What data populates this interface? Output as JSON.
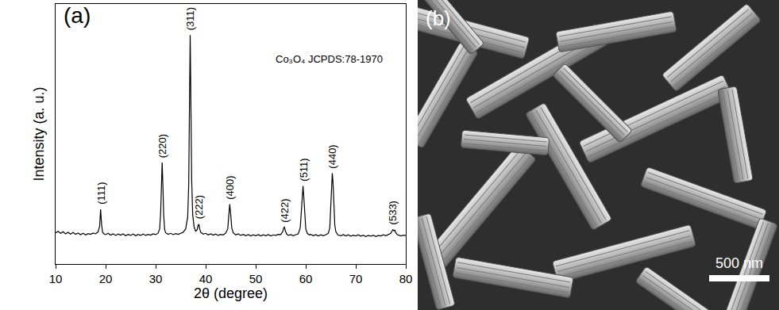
{
  "chart_data": {
    "type": "line",
    "panel_label": "(a)",
    "x_label": "2θ (degree)",
    "y_label": "Intensity (a. u.)",
    "note": "Co₃O₄ JCPDS:78-1970",
    "color": "#000000",
    "xlim": [
      10,
      80
    ],
    "xticks": [
      10,
      20,
      30,
      40,
      50,
      60,
      70,
      80
    ],
    "ylim": [
      0,
      100
    ],
    "tick_labels": "x",
    "grid": false,
    "x": [
      10,
      10.5,
      11,
      11.5,
      12,
      12.5,
      13,
      13.5,
      14,
      14.5,
      15,
      15.5,
      16,
      16.5,
      17,
      17.5,
      18,
      18.5,
      18.8,
      19.0,
      19.2,
      19.4,
      19.7,
      20,
      20.5,
      21,
      21.5,
      22,
      22.5,
      23,
      23.5,
      24,
      24.5,
      25,
      25.5,
      26,
      26.5,
      27,
      27.5,
      28,
      28.5,
      29,
      29.5,
      30,
      30.5,
      30.8,
      31.0,
      31.15,
      31.3,
      31.45,
      31.6,
      31.8,
      32.0,
      32.5,
      33,
      33.5,
      34,
      34.5,
      35,
      35.5,
      36.0,
      36.4,
      36.6,
      36.75,
      36.9,
      37.05,
      37.2,
      37.4,
      37.7,
      38.0,
      38.3,
      38.5,
      38.65,
      38.8,
      39.0,
      39.5,
      40,
      40.5,
      41,
      41.5,
      42,
      42.5,
      43,
      43.5,
      44.0,
      44.4,
      44.6,
      44.8,
      45.0,
      45.2,
      45.5,
      46,
      46.5,
      47,
      47.5,
      48,
      48.5,
      49,
      49.5,
      50,
      50.5,
      51,
      51.5,
      52,
      52.5,
      53,
      53.5,
      54,
      54.5,
      55.0,
      55.4,
      55.6,
      55.75,
      55.9,
      56.2,
      56.5,
      57,
      57.5,
      58,
      58.5,
      58.9,
      59.1,
      59.3,
      59.45,
      59.6,
      59.8,
      60.0,
      60.3,
      60.7,
      61,
      61.5,
      62,
      62.5,
      63,
      63.5,
      64,
      64.5,
      64.8,
      65.0,
      65.15,
      65.3,
      65.45,
      65.6,
      65.8,
      66.0,
      66.4,
      67,
      67.5,
      68,
      68.5,
      69,
      69.5,
      70,
      70.5,
      71,
      71.5,
      72,
      72.5,
      73,
      73.5,
      74,
      74.5,
      75,
      75.5,
      76,
      76.5,
      77.0,
      77.2,
      77.4,
      77.6,
      77.8,
      78.0,
      78.3,
      78.7,
      79,
      79.5,
      80
    ],
    "values": [
      12.0,
      12.6,
      11.8,
      12.4,
      11.6,
      12.2,
      11.5,
      12.1,
      11.4,
      11.9,
      11.3,
      11.8,
      11.2,
      11.7,
      11.4,
      11.9,
      11.6,
      12.4,
      14.5,
      21,
      15,
      12.2,
      11.6,
      11.3,
      11.8,
      11.1,
      11.6,
      11.0,
      11.5,
      11.1,
      11.6,
      10.9,
      11.4,
      11.0,
      11.5,
      10.9,
      11.4,
      11.0,
      11.5,
      11.0,
      11.4,
      11.1,
      11.6,
      11.3,
      11.9,
      13.5,
      20,
      30,
      39,
      30,
      19,
      13.2,
      12.0,
      11.4,
      11.8,
      11.3,
      11.7,
      11.4,
      11.9,
      12.2,
      13.5,
      18,
      30,
      55,
      88,
      60,
      32,
      19,
      14,
      12.6,
      13.2,
      15,
      15.3,
      13.5,
      12.2,
      11.5,
      11.8,
      11.2,
      11.6,
      11.1,
      11.5,
      11.0,
      11.4,
      11.2,
      11.9,
      13.5,
      18,
      23,
      19,
      14,
      12.0,
      11.2,
      11.6,
      11.0,
      11.4,
      10.9,
      11.3,
      10.8,
      11.2,
      10.9,
      11.3,
      10.8,
      11.2,
      10.9,
      11.3,
      10.8,
      11.2,
      11.0,
      11.4,
      11.3,
      12.5,
      14,
      14.2,
      12.8,
      11.5,
      11.0,
      11.3,
      10.9,
      11.3,
      11.6,
      14,
      20,
      28,
      30,
      26,
      18,
      13.5,
      11.8,
      11.2,
      11.4,
      10.9,
      11.3,
      10.8,
      11.2,
      10.9,
      11.3,
      11.8,
      14,
      21,
      30,
      35,
      31,
      22,
      15,
      12.5,
      11.2,
      10.9,
      11.3,
      10.8,
      11.2,
      10.7,
      11.1,
      10.8,
      11.2,
      10.7,
      11.1,
      10.6,
      11.0,
      10.7,
      11.1,
      10.6,
      11.0,
      10.8,
      11.2,
      10.9,
      11.3,
      11.8,
      12.6,
      13.2,
      12.8,
      13.0,
      12.0,
      11.3,
      11.0,
      10.8,
      11.1,
      10.9
    ],
    "annotations": [
      {
        "text": "(111)",
        "x": 19.0,
        "y": 21
      },
      {
        "text": "(220)",
        "x": 31.3,
        "y": 39
      },
      {
        "text": "(311)",
        "x": 36.9,
        "y": 88
      },
      {
        "text": "(222)",
        "x": 38.65,
        "y": 15.3
      },
      {
        "text": "(400)",
        "x": 44.8,
        "y": 23
      },
      {
        "text": "(422)",
        "x": 55.75,
        "y": 14.2
      },
      {
        "text": "(511)",
        "x": 59.45,
        "y": 30
      },
      {
        "text": "(440)",
        "x": 65.3,
        "y": 35
      },
      {
        "text": "(533)",
        "x": 77.4,
        "y": 13.2
      }
    ]
  },
  "image_panel": {
    "label": "(b)",
    "scale_bar": "500 nm"
  }
}
